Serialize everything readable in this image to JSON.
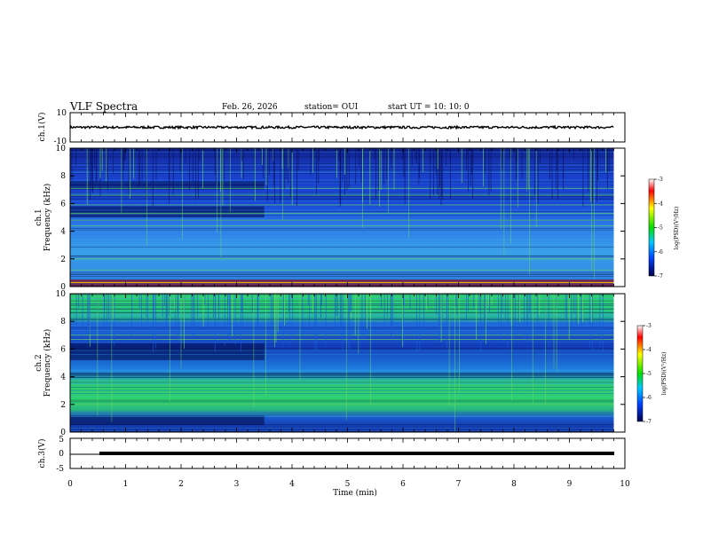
{
  "header": {
    "title": "VLF Spectra",
    "date": "Feb. 26, 2026",
    "station": "station= OUI",
    "start": "start  UT  =    10: 10: 0"
  },
  "colors": {
    "spectrogram_bg": "#1535b8",
    "dark_band": "#000a45",
    "signal_line": "#6ee05a",
    "bright_line": "#f2c400",
    "ch2_green": "#2fd36a"
  },
  "chart_data": [
    {
      "type": "line",
      "name": "ch1-waveform",
      "ylabel": "ch.1(V)",
      "ylim": [
        -10,
        10
      ],
      "yticks": [
        "10",
        "-10"
      ],
      "x": [
        0,
        9.8
      ],
      "y": [
        0,
        0
      ]
    },
    {
      "type": "heatmap",
      "name": "ch1-spectrogram",
      "ylabel_top": "ch.1",
      "ylabel": "Frequency (kHz)",
      "ylim": [
        0,
        10
      ],
      "yticks": [
        "0",
        "2",
        "4",
        "6",
        "8",
        "10"
      ],
      "xlim": [
        0,
        10
      ],
      "data_end_min": 9.8,
      "colorbar": {
        "label": "log(PSD)(V²/Hz)",
        "range": [
          -7,
          -3
        ],
        "ticks": [
          "-3",
          "-4",
          "-5",
          "-6",
          "-7"
        ]
      },
      "dark_bands_khz": [
        [
          7.0,
          7.6
        ],
        [
          5.0,
          5.8
        ]
      ],
      "bright_band_khz": [
        0.0,
        0.5
      ],
      "green_lines_khz": [
        7.1,
        6.6,
        5.9,
        5.3,
        4.8,
        4.4,
        2.0,
        1.2
      ]
    },
    {
      "type": "heatmap",
      "name": "ch2-spectrogram",
      "ylabel_top": "ch.2",
      "ylabel": "Frequency (kHz)",
      "ylim": [
        0,
        10
      ],
      "yticks": [
        "0",
        "2",
        "4",
        "6",
        "8",
        "10"
      ],
      "xlim": [
        0,
        10
      ],
      "data_end_min": 9.8,
      "colorbar": {
        "label": "log(PSD)(V²/Hz)",
        "range": [
          -7,
          -3
        ],
        "ticks": [
          "-3",
          "-4",
          "-5",
          "-6",
          "-7"
        ]
      },
      "green_bands_khz": [
        [
          8.0,
          10.0
        ],
        [
          1.5,
          3.8
        ]
      ],
      "dark_bands_khz": [
        [
          5.2,
          6.4
        ],
        [
          0.5,
          1.2
        ]
      ],
      "green_lines_khz": [
        7.0,
        6.7,
        2.0
      ]
    },
    {
      "type": "line",
      "name": "ch3-signal",
      "ylabel": "ch.3(V)",
      "ylim": [
        -5,
        5
      ],
      "yticks": [
        "5",
        "0",
        "-5"
      ],
      "x": [
        0,
        0.5,
        9.8
      ],
      "y": [
        0,
        0,
        0
      ]
    }
  ],
  "xaxis": {
    "label": "Time  (min)",
    "ticks": [
      "0",
      "1",
      "2",
      "3",
      "4",
      "5",
      "6",
      "7",
      "8",
      "9",
      "10"
    ]
  }
}
